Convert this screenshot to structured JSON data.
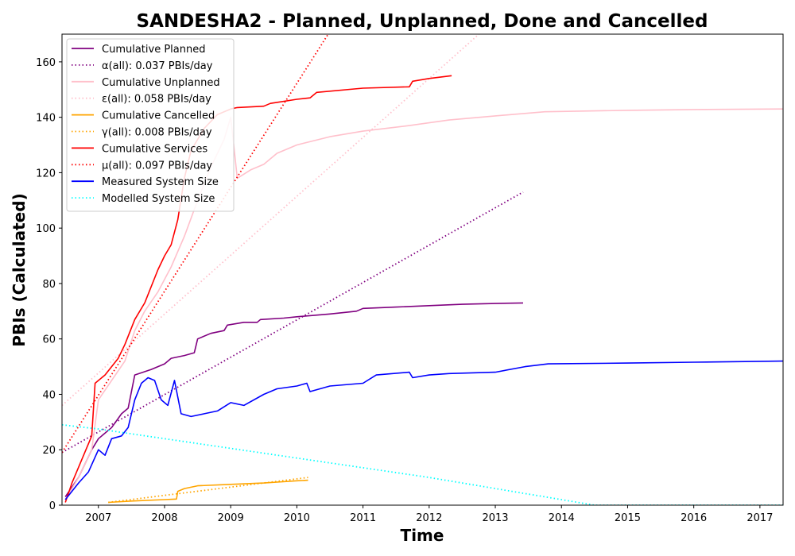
{
  "chart_data": {
    "type": "line",
    "title": "SANDESHA2 - Planned, Unplanned, Done  and Cancelled",
    "xlabel": "Time",
    "ylabel": "PBIs (Calculated)",
    "xlim": [
      2006.45,
      2017.35
    ],
    "ylim": [
      0,
      170
    ],
    "x_ticks": [
      "2007",
      "2008",
      "2009",
      "2010",
      "2011",
      "2012",
      "2013",
      "2014",
      "2015",
      "2016",
      "2017"
    ],
    "y_ticks": [
      "0",
      "20",
      "40",
      "60",
      "80",
      "100",
      "120",
      "140",
      "160"
    ],
    "grid": false,
    "legend_position": "top-left",
    "series": [
      {
        "name": "Cumulative Planned",
        "color": "#800080",
        "style": "solid",
        "x": [
          2006.5,
          2006.7,
          2006.9,
          2007.0,
          2007.2,
          2007.35,
          2007.45,
          2007.55,
          2007.8,
          2008.0,
          2008.1,
          2008.3,
          2008.45,
          2008.5,
          2008.7,
          2008.9,
          2008.95,
          2009.2,
          2009.4,
          2009.45,
          2009.8,
          2010.0,
          2010.5,
          2010.9,
          2011.0,
          2011.5,
          2012.0,
          2012.5,
          2013.0,
          2013.42
        ],
        "y": [
          3,
          10,
          20,
          24,
          28,
          33,
          35,
          47,
          49,
          51,
          53,
          54,
          55,
          60,
          62,
          63,
          65,
          66,
          66,
          67,
          67.5,
          68,
          69,
          70,
          71,
          71.5,
          72,
          72.5,
          72.8,
          73
        ]
      },
      {
        "name": "α(all): 0.037 PBIs/day",
        "color": "#800080",
        "style": "dotted",
        "x": [
          2006.45,
          2013.42
        ],
        "y": [
          19,
          113
        ]
      },
      {
        "name": "Cumulative Unplanned",
        "color": "#ffc0cb",
        "style": "solid",
        "x": [
          2006.5,
          2006.7,
          2006.9,
          2007.0,
          2007.2,
          2007.4,
          2007.55,
          2007.7,
          2007.9,
          2008.1,
          2008.3,
          2008.5,
          2008.7,
          2008.9,
          2009.0,
          2009.1,
          2009.3,
          2009.5,
          2009.7,
          2010.0,
          2010.5,
          2011.0,
          2011.7,
          2012.0,
          2012.3,
          2013.0,
          2013.75,
          2015.0,
          2016.0,
          2017.35
        ],
        "y": [
          2,
          10,
          20,
          38,
          45,
          52,
          63,
          70,
          77,
          86,
          97,
          110,
          122,
          132,
          140,
          118,
          121,
          123,
          127,
          130,
          133,
          135,
          137,
          138,
          139,
          140.5,
          142,
          142.5,
          142.8,
          143
        ]
      },
      {
        "name": "ε(all): 0.058 PBIs/day",
        "color": "#ffc0cb",
        "style": "dotted",
        "x": [
          2006.45,
          2012.8
        ],
        "y": [
          36,
          171
        ]
      },
      {
        "name": "Cumulative Cancelled",
        "color": "#ffa500",
        "style": "solid",
        "x": [
          2007.15,
          2007.5,
          2008.0,
          2008.18,
          2008.2,
          2008.3,
          2008.5,
          2009.0,
          2009.5,
          2010.0,
          2010.17
        ],
        "y": [
          1,
          1.5,
          2,
          2.2,
          5,
          6,
          7,
          7.5,
          8,
          8.8,
          9
        ]
      },
      {
        "name": "γ(all): 0.008 PBIs/day",
        "color": "#ffa500",
        "style": "dotted",
        "x": [
          2007.15,
          2010.17
        ],
        "y": [
          1,
          10
        ]
      },
      {
        "name": "Cumulative Services",
        "color": "#ff0000",
        "style": "solid",
        "x": [
          2006.5,
          2006.6,
          2006.9,
          2006.95,
          2007.1,
          2007.3,
          2007.4,
          2007.55,
          2007.7,
          2007.9,
          2008.0,
          2008.1,
          2008.2,
          2008.3,
          2008.4,
          2008.6,
          2008.8,
          2009.0,
          2009.1,
          2009.5,
          2009.6,
          2010.0,
          2010.2,
          2010.3,
          2011.0,
          2011.7,
          2011.75,
          2012.0,
          2012.34
        ],
        "y": [
          1,
          8,
          25,
          44,
          47,
          53,
          58,
          67,
          73,
          85,
          90,
          94,
          103,
          118,
          128,
          136,
          141,
          143,
          143.5,
          144,
          145,
          146.5,
          147,
          149,
          150.5,
          151,
          153,
          154,
          155
        ]
      },
      {
        "name": "μ(all): 0.097 PBIs/day",
        "color": "#ff0000",
        "style": "dotted",
        "x": [
          2006.45,
          2010.5
        ],
        "y": [
          19,
          171
        ]
      },
      {
        "name": "Measured System Size",
        "color": "#0000ff",
        "style": "solid",
        "x": [
          2006.5,
          2006.7,
          2006.85,
          2007.0,
          2007.1,
          2007.2,
          2007.35,
          2007.45,
          2007.55,
          2007.65,
          2007.75,
          2007.85,
          2007.95,
          2008.05,
          2008.15,
          2008.25,
          2008.4,
          2008.6,
          2008.8,
          2009.0,
          2009.2,
          2009.5,
          2009.7,
          2010.0,
          2010.15,
          2010.2,
          2010.5,
          2011.0,
          2011.2,
          2011.7,
          2011.75,
          2012.0,
          2012.3,
          2013.0,
          2013.45,
          2013.8,
          2015.0,
          2016.0,
          2017.35
        ],
        "y": [
          2,
          8,
          12,
          20,
          18,
          24,
          25,
          28,
          38,
          44,
          46,
          45,
          38,
          36,
          45,
          33,
          32,
          33,
          34,
          37,
          36,
          40,
          42,
          43,
          44,
          41,
          43,
          44,
          47,
          48,
          46,
          47,
          47.5,
          48,
          50,
          51,
          51.3,
          51.6,
          52
        ]
      },
      {
        "name": "Modelled System Size",
        "color": "#00ffff",
        "style": "dotted",
        "x": [
          2006.45,
          2007.0,
          2008.0,
          2009.0,
          2010.0,
          2011.0,
          2012.0,
          2013.0,
          2014.0,
          2014.5,
          2017.35
        ],
        "y": [
          29,
          27.5,
          24,
          20.5,
          17,
          13.5,
          10,
          6,
          2,
          0,
          0
        ]
      }
    ]
  }
}
